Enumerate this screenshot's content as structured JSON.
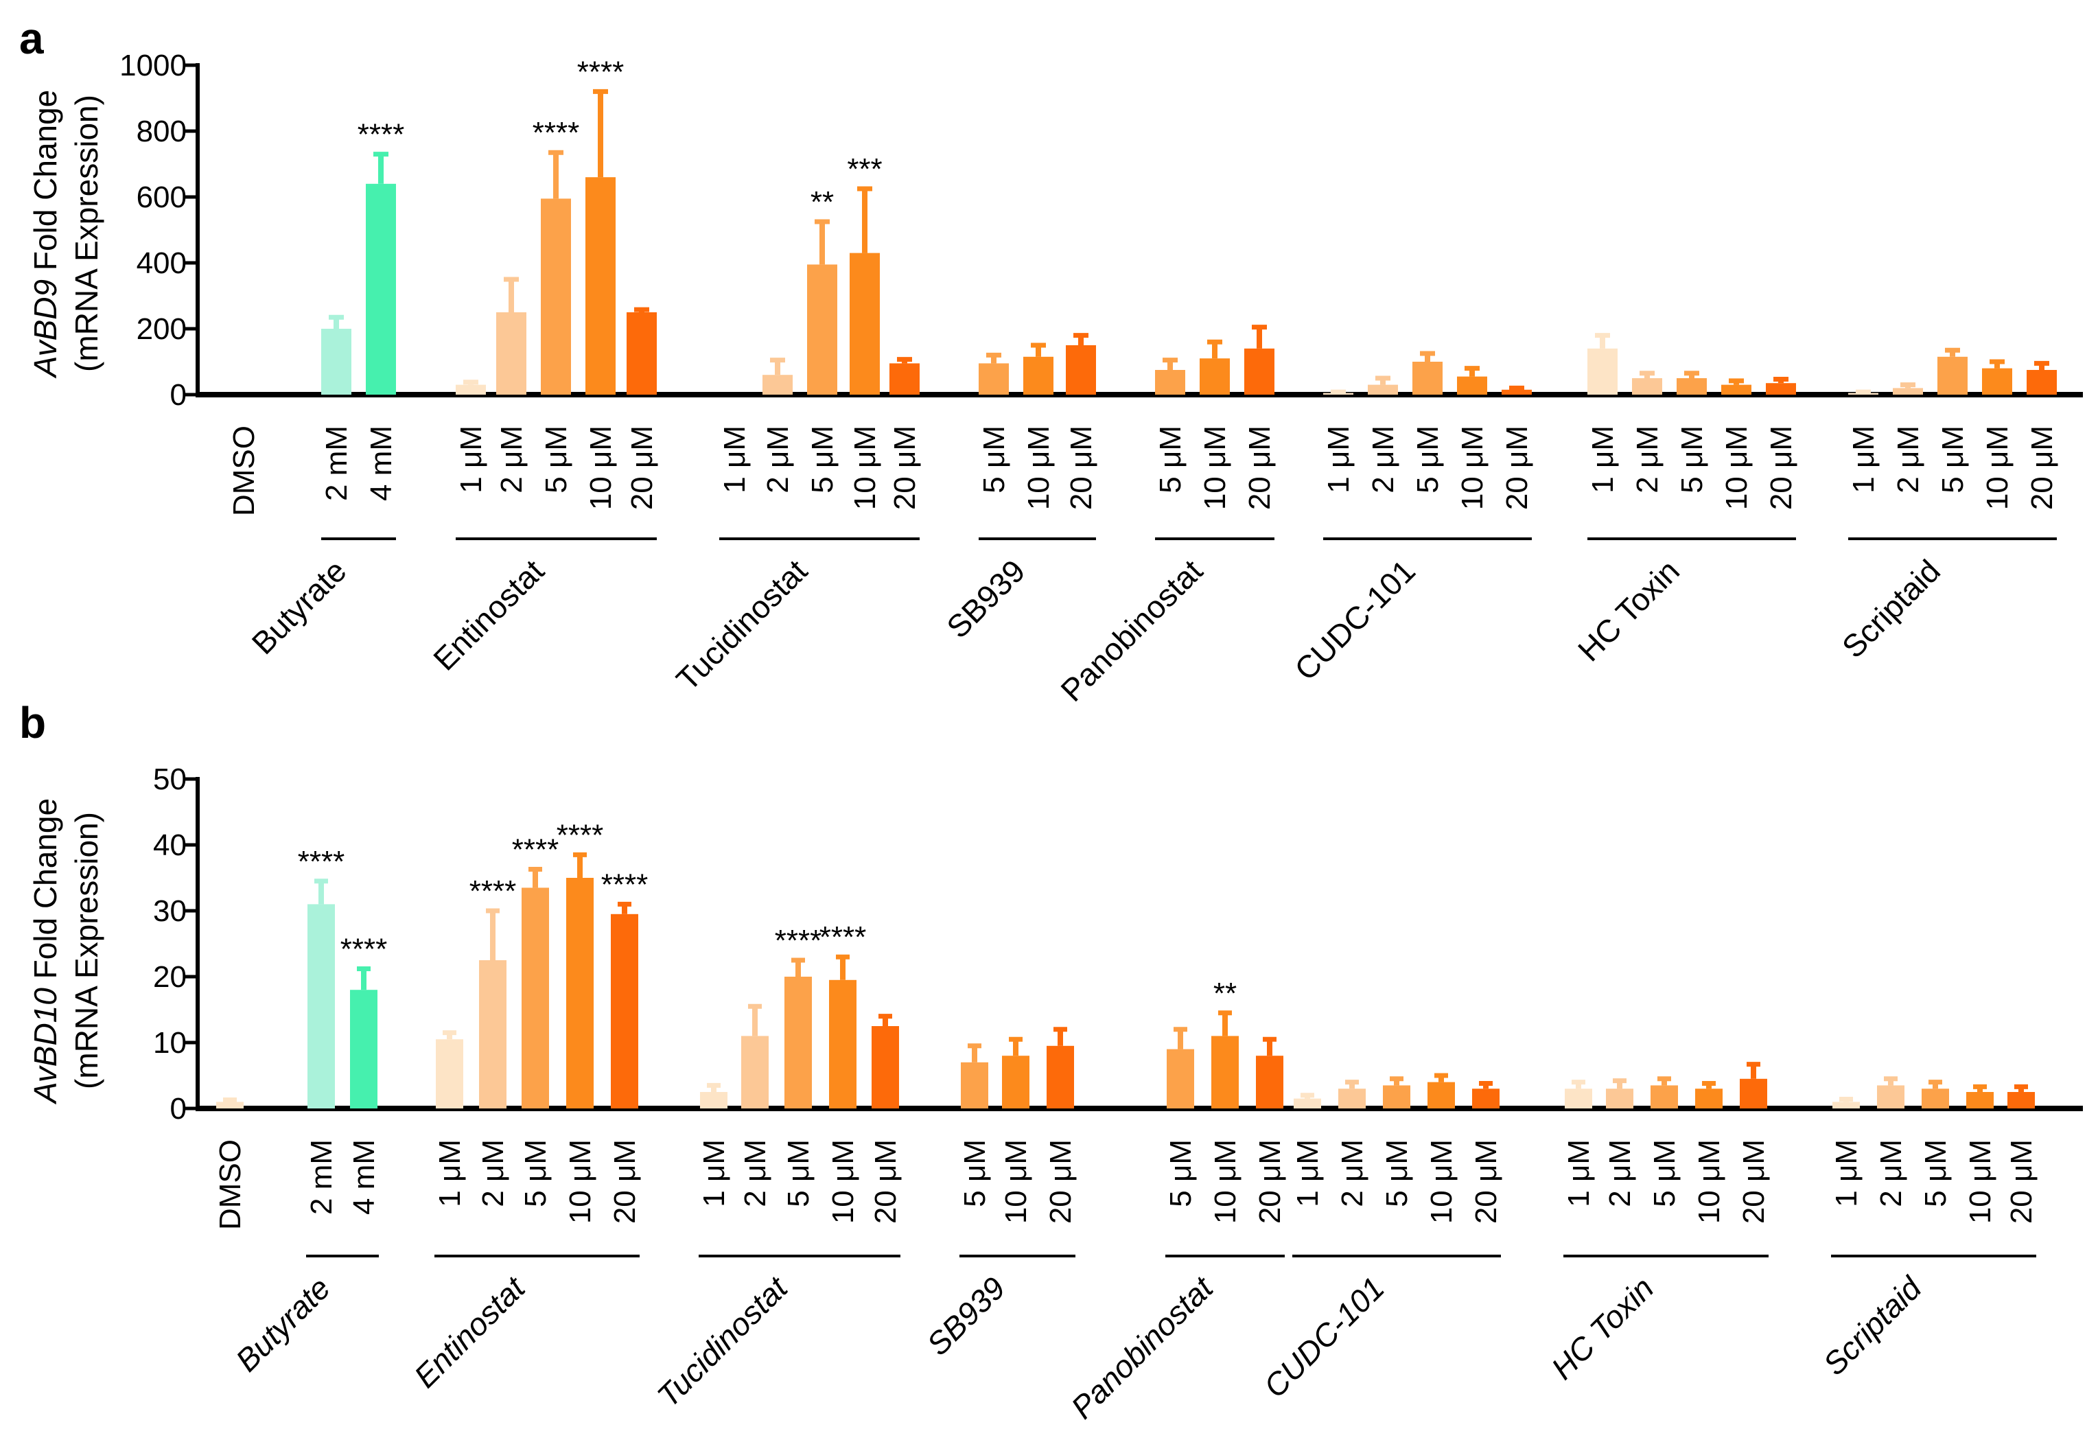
{
  "chart_data": [
    {
      "panel": "a",
      "type": "bar",
      "ylabel_italic": "AvBD9",
      "ylabel_rest": " Fold Change",
      "ylabel_line2": "(mRNA  Expression)",
      "ylim": [
        0,
        1000
      ],
      "yticks": [
        "0",
        "200",
        "400",
        "600",
        "800",
        "1000"
      ],
      "italic_groups": false,
      "groups": [
        {
          "name": "",
          "labels": [
            "DMSO"
          ],
          "values": [
            0
          ],
          "errors": [
            0
          ],
          "sig": [
            ""
          ],
          "colors": [
            "#fde4c6"
          ]
        },
        {
          "name": "Butyrate",
          "labels": [
            "2 mM",
            "4 mM"
          ],
          "values": [
            200,
            640
          ],
          "errors": [
            35,
            90
          ],
          "sig": [
            "",
            "****"
          ],
          "colors": [
            "#aaf2da",
            "#46f0ae"
          ]
        },
        {
          "name": "Entinostat",
          "labels": [
            "1 μM",
            "2 μM",
            "5 μM",
            "10 μM",
            "20 μM"
          ],
          "values": [
            30,
            250,
            595,
            660,
            250
          ],
          "errors": [
            8,
            100,
            140,
            260,
            8
          ],
          "sig": [
            "",
            "",
            "****",
            "****",
            ""
          ],
          "colors": [
            "#fde4c6",
            "#fcc896",
            "#fca24a",
            "#fc8a1c",
            "#fd6a0a"
          ]
        },
        {
          "name": "Tucidinostat",
          "labels": [
            "1 μM",
            "2 μM",
            "5 μM",
            "10 μM",
            "20 μM"
          ],
          "values": [
            0,
            60,
            395,
            430,
            95
          ],
          "errors": [
            0,
            45,
            130,
            195,
            12
          ],
          "sig": [
            "",
            "",
            "**",
            "***",
            ""
          ],
          "colors": [
            "#fde4c6",
            "#fcc896",
            "#fca24a",
            "#fc8a1c",
            "#fd6a0a"
          ]
        },
        {
          "name": "SB939",
          "labels": [
            "5 μM",
            "10 μM",
            "20 μM"
          ],
          "values": [
            95,
            115,
            150
          ],
          "errors": [
            25,
            35,
            30
          ],
          "sig": [
            "",
            "",
            ""
          ],
          "colors": [
            "#fca24a",
            "#fc8a1c",
            "#fd6a0a"
          ]
        },
        {
          "name": "Panobinostat",
          "labels": [
            "5 μM",
            "10 μM",
            "20 μM"
          ],
          "values": [
            75,
            110,
            140
          ],
          "errors": [
            30,
            50,
            65
          ],
          "sig": [
            "",
            "",
            ""
          ],
          "colors": [
            "#fca24a",
            "#fc8a1c",
            "#fd6a0a"
          ]
        },
        {
          "name": "CUDC-101",
          "labels": [
            "1 μM",
            "2 μM",
            "5 μM",
            "10 μM",
            "20 μM"
          ],
          "values": [
            5,
            30,
            100,
            55,
            15
          ],
          "errors": [
            3,
            20,
            25,
            25,
            5
          ],
          "sig": [
            "",
            "",
            "",
            "",
            ""
          ],
          "colors": [
            "#fde4c6",
            "#fcc896",
            "#fca24a",
            "#fc8a1c",
            "#fd6a0a"
          ]
        },
        {
          "name": "HC Toxin",
          "labels": [
            "1 μM",
            "2 μM",
            "5 μM",
            "10 μM",
            "20 μM"
          ],
          "values": [
            140,
            50,
            50,
            30,
            35
          ],
          "errors": [
            40,
            15,
            15,
            12,
            12
          ],
          "sig": [
            "",
            "",
            "",
            "",
            ""
          ],
          "colors": [
            "#fde4c6",
            "#fcc896",
            "#fca24a",
            "#fc8a1c",
            "#fd6a0a"
          ]
        },
        {
          "name": "Scriptaid",
          "labels": [
            "1 μM",
            "2 μM",
            "5 μM",
            "10 μM",
            "20 μM"
          ],
          "values": [
            5,
            20,
            115,
            80,
            75
          ],
          "errors": [
            3,
            10,
            20,
            20,
            20
          ],
          "sig": [
            "",
            "",
            "",
            "",
            ""
          ],
          "colors": [
            "#fde4c6",
            "#fcc896",
            "#fca24a",
            "#fc8a1c",
            "#fd6a0a"
          ]
        }
      ]
    },
    {
      "panel": "b",
      "type": "bar",
      "ylabel_italic": "AvBD10",
      "ylabel_rest": " Fold Change",
      "ylabel_line2": "(mRNA  Expression)",
      "ylim": [
        0,
        50
      ],
      "yticks": [
        "0",
        "10",
        "20",
        "30",
        "40",
        "50"
      ],
      "italic_groups": true,
      "groups": [
        {
          "name": "",
          "labels": [
            "DMSO"
          ],
          "values": [
            1
          ],
          "errors": [
            0.3
          ],
          "sig": [
            ""
          ],
          "colors": [
            "#fde4c6"
          ]
        },
        {
          "name": "Butyrate",
          "labels": [
            "2 mM",
            "4 mM"
          ],
          "values": [
            31,
            18
          ],
          "errors": [
            3.5,
            3.2
          ],
          "sig": [
            "****",
            "****"
          ],
          "colors": [
            "#aaf2da",
            "#46f0ae"
          ]
        },
        {
          "name": "Entinostat",
          "labels": [
            "1 μM",
            "2 μM",
            "5 μM",
            "10 μM",
            "20 μM"
          ],
          "values": [
            10.5,
            22.5,
            33.5,
            35,
            29.5
          ],
          "errors": [
            1,
            7.5,
            2.8,
            3.5,
            1.5
          ],
          "sig": [
            "",
            "****",
            "****",
            "****",
            "****"
          ],
          "colors": [
            "#fde4c6",
            "#fcc896",
            "#fca24a",
            "#fc8a1c",
            "#fd6a0a"
          ]
        },
        {
          "name": "Tucidinostat",
          "labels": [
            "1 μM",
            "2 μM",
            "5 μM",
            "10 μM",
            "20 μM"
          ],
          "values": [
            2.5,
            11,
            20,
            19.5,
            12.5
          ],
          "errors": [
            1,
            4.5,
            2.5,
            3.5,
            1.5
          ],
          "sig": [
            "",
            "",
            "****",
            "****",
            ""
          ],
          "colors": [
            "#fde4c6",
            "#fcc896",
            "#fca24a",
            "#fc8a1c",
            "#fd6a0a"
          ]
        },
        {
          "name": "SB939",
          "labels": [
            "5 μM",
            "10 μM",
            "20 μM"
          ],
          "values": [
            7,
            8,
            9.5
          ],
          "errors": [
            2.5,
            2.5,
            2.5
          ],
          "sig": [
            "",
            "",
            ""
          ],
          "colors": [
            "#fca24a",
            "#fc8a1c",
            "#fd6a0a"
          ]
        },
        {
          "name": "Panobinostat",
          "labels": [
            "5 μM",
            "10 μM",
            "20 μM"
          ],
          "values": [
            9,
            11,
            8
          ],
          "errors": [
            3,
            3.5,
            2.5
          ],
          "sig": [
            "",
            "**",
            ""
          ],
          "colors": [
            "#fca24a",
            "#fc8a1c",
            "#fd6a0a"
          ]
        },
        {
          "name": "CUDC-101",
          "labels": [
            "1 μM",
            "2 μM",
            "5 μM",
            "10 μM",
            "20 μM"
          ],
          "values": [
            1.5,
            3,
            3.5,
            4,
            3
          ],
          "errors": [
            0.5,
            1,
            1,
            1,
            0.8
          ],
          "sig": [
            "",
            "",
            "",
            "",
            ""
          ],
          "colors": [
            "#fde4c6",
            "#fcc896",
            "#fca24a",
            "#fc8a1c",
            "#fd6a0a"
          ]
        },
        {
          "name": "HC Toxin",
          "labels": [
            "1 μM",
            "2 μM",
            "5 μM",
            "10 μM",
            "20 μM"
          ],
          "values": [
            3,
            3,
            3.5,
            3,
            4.5
          ],
          "errors": [
            1,
            1.2,
            1,
            0.8,
            2.2
          ],
          "sig": [
            "",
            "",
            "",
            "",
            ""
          ],
          "colors": [
            "#fde4c6",
            "#fcc896",
            "#fca24a",
            "#fc8a1c",
            "#fd6a0a"
          ]
        },
        {
          "name": "Scriptaid",
          "labels": [
            "1 μM",
            "2 μM",
            "5 μM",
            "10 μM",
            "20 μM"
          ],
          "values": [
            1,
            3.5,
            3,
            2.5,
            2.5
          ],
          "errors": [
            0.4,
            1,
            1,
            0.8,
            0.8
          ],
          "sig": [
            "",
            "",
            "",
            "",
            ""
          ],
          "colors": [
            "#fde4c6",
            "#fcc896",
            "#fca24a",
            "#fc8a1c",
            "#fd6a0a"
          ]
        }
      ]
    }
  ]
}
